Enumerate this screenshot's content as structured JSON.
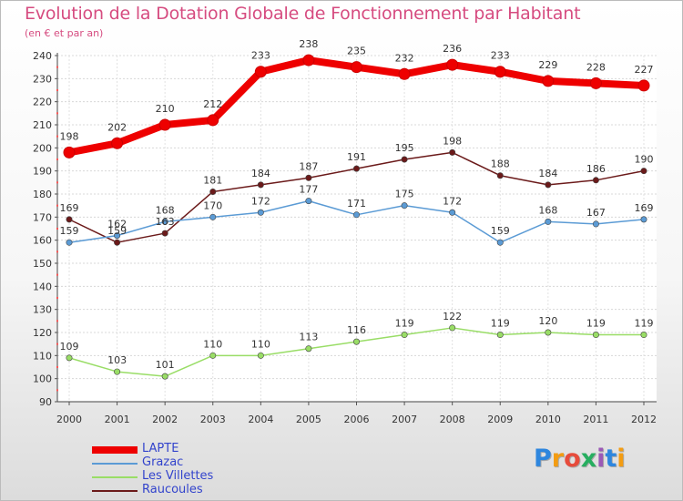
{
  "title": "Evolution de la Dotation Globale de Fonctionnement par Habitant",
  "subtitle": "(en € et par an)",
  "logo": {
    "letters": [
      "P",
      "r",
      "o",
      "x",
      "i",
      "t",
      "i"
    ],
    "colors": [
      "#2e86de",
      "#f39c12",
      "#e74c3c",
      "#27ae60",
      "#9b59b6",
      "#2e86de",
      "#f39c12"
    ]
  },
  "chart_data": {
    "type": "line",
    "x": [
      "2000",
      "2001",
      "2002",
      "2003",
      "2004",
      "2005",
      "2006",
      "2007",
      "2008",
      "2009",
      "2010",
      "2011",
      "2012"
    ],
    "ylim": [
      90,
      240
    ],
    "yticks": [
      "90",
      "100",
      "110",
      "120",
      "130",
      "140",
      "150",
      "160",
      "170",
      "180",
      "190",
      "200",
      "210",
      "220",
      "230",
      "240"
    ],
    "grid": true,
    "legend_position": "bottom-left",
    "series": [
      {
        "name": "LAPTE",
        "color": "#ee0000",
        "values": [
          198,
          202,
          210,
          212,
          233,
          238,
          235,
          232,
          236,
          233,
          229,
          228,
          227
        ],
        "labels": [
          "198",
          "202",
          "210",
          "212",
          "233",
          "238",
          "235",
          "232",
          "236",
          "233",
          "229",
          "228",
          "227"
        ]
      },
      {
        "name": "Grazac",
        "color": "#5b9bd5",
        "values": [
          159,
          162,
          168,
          170,
          172,
          177,
          171,
          175,
          172,
          159,
          168,
          167,
          169
        ],
        "labels": [
          "159",
          "162",
          "168",
          "170",
          "172",
          "177",
          "171",
          "175",
          "172",
          "159",
          "168",
          "167",
          "169"
        ]
      },
      {
        "name": "Les Villettes",
        "color": "#99dd66",
        "values": [
          109,
          103,
          101,
          110,
          110,
          113,
          116,
          119,
          122,
          119,
          120,
          119,
          119
        ],
        "labels": [
          "109",
          "103",
          "101",
          "110",
          "110",
          "113",
          "116",
          "119",
          "122",
          "119",
          "120",
          "119",
          "119"
        ]
      },
      {
        "name": "Raucoules",
        "color": "#6b1a1a",
        "values": [
          169,
          159,
          163,
          181,
          184,
          187,
          191,
          195,
          198,
          188,
          184,
          186,
          190
        ],
        "labels": [
          "169",
          "159",
          "163",
          "181",
          "184",
          "187",
          "191",
          "195",
          "198",
          "188",
          "184",
          "186",
          "190"
        ]
      }
    ]
  }
}
